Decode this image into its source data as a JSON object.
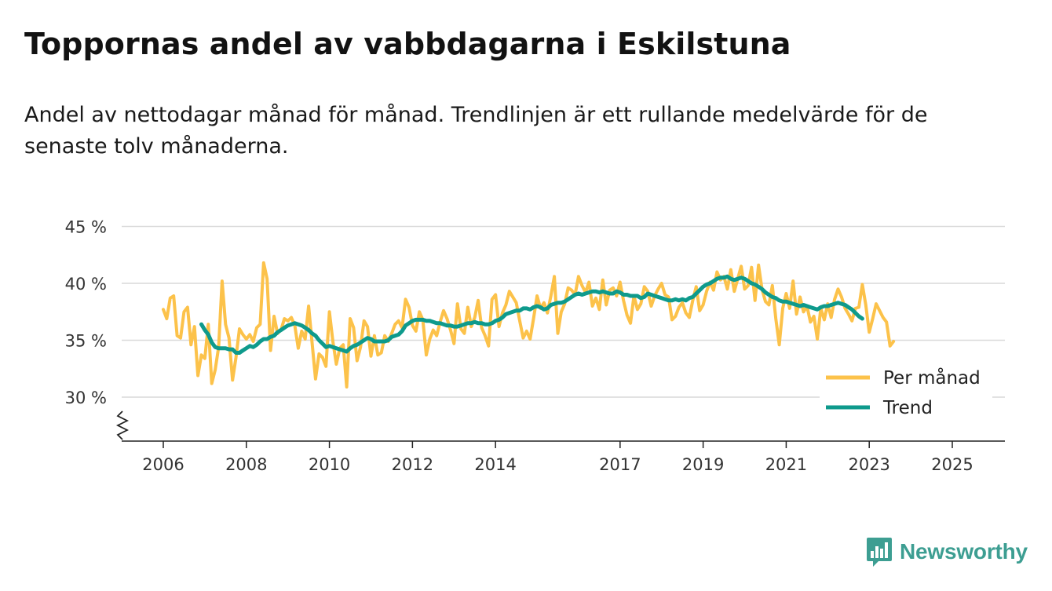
{
  "title": "Toppornas andel av vabbdagarna i Eskilstuna",
  "subtitle": "Andel av nettodagar månad för månad. Trendlinjen är ett rullande medelvärde för de senaste tolv månaderna.",
  "brand": {
    "name": "Newsworthy",
    "color": "#3d9e92",
    "icon": "bar-chart-speech-bubble-icon"
  },
  "colors": {
    "monthly": "#fcc24a",
    "trend": "#0e9a8c",
    "grid": "#d9d9d9",
    "axis": "#222222"
  },
  "chart_data": {
    "type": "line",
    "title": "Toppornas andel av vabbdagarna i Eskilstuna",
    "xlabel": "",
    "ylabel": "",
    "ylim": [
      26,
      45
    ],
    "y_axis_break": true,
    "xlim": [
      2006,
      2025.7
    ],
    "yticks": [
      30,
      35,
      40,
      45
    ],
    "ytick_labels": [
      "30 %",
      "35 %",
      "40 %",
      "45 %"
    ],
    "xticks": [
      2006,
      2008,
      2010,
      2012,
      2014,
      2017,
      2019,
      2021,
      2023,
      2025
    ],
    "xtick_labels": [
      "2006",
      "2008",
      "2010",
      "2012",
      "2014",
      "2017",
      "2019",
      "2021",
      "2023",
      "2025"
    ],
    "grid": true,
    "legend_position": "bottom-right",
    "series": [
      {
        "name": "Per månad",
        "start_year": 2006.0,
        "step_years": 0.0833333,
        "values": [
          37.7,
          36.9,
          38.7,
          38.9,
          35.4,
          35.2,
          37.5,
          37.9,
          34.6,
          36.2,
          31.9,
          33.7,
          33.4,
          36.4,
          31.2,
          32.4,
          34.4,
          40.2,
          36.4,
          35.2,
          31.5,
          33.5,
          36.0,
          35.5,
          35.1,
          35.5,
          34.9,
          36.1,
          36.4,
          41.8,
          40.4,
          34.1,
          37.1,
          35.6,
          35.9,
          36.9,
          36.7,
          37.0,
          36.3,
          34.3,
          35.8,
          35.1,
          38.0,
          34.8,
          31.6,
          33.8,
          33.5,
          32.7,
          37.5,
          34.9,
          32.9,
          34.3,
          34.6,
          30.9,
          36.9,
          36.1,
          33.2,
          34.4,
          36.7,
          36.2,
          33.6,
          35.4,
          33.7,
          33.9,
          35.4,
          34.9,
          35.6,
          36.4,
          36.7,
          36.1,
          38.6,
          37.9,
          36.3,
          35.8,
          37.5,
          36.8,
          33.7,
          35.1,
          35.9,
          35.4,
          36.6,
          37.6,
          36.9,
          35.9,
          34.7,
          38.2,
          36.0,
          35.6,
          37.9,
          36.2,
          37.0,
          38.5,
          36.1,
          35.4,
          34.5,
          38.6,
          39.0,
          36.2,
          37.4,
          38.1,
          39.3,
          38.8,
          38.3,
          36.7,
          35.2,
          35.8,
          35.1,
          36.9,
          38.9,
          37.8,
          38.3,
          37.4,
          38.9,
          40.6,
          35.6,
          37.5,
          38.2,
          39.6,
          39.4,
          39.0,
          40.6,
          39.8,
          39.2,
          40.1,
          38.0,
          38.7,
          37.7,
          40.3,
          38.1,
          39.4,
          39.6,
          38.9,
          40.1,
          38.5,
          37.2,
          36.5,
          38.9,
          37.7,
          38.2,
          39.7,
          39.3,
          38.0,
          38.9,
          39.5,
          40.0,
          39.0,
          38.8,
          36.8,
          37.1,
          37.9,
          38.3,
          37.4,
          37.0,
          38.5,
          39.7,
          37.6,
          38.1,
          39.3,
          40.1,
          39.4,
          41.0,
          40.3,
          40.6,
          39.5,
          41.2,
          39.3,
          40.4,
          41.5,
          39.5,
          39.8,
          41.4,
          38.5,
          41.6,
          39.5,
          38.4,
          38.1,
          39.8,
          36.9,
          34.6,
          37.8,
          39.1,
          37.8,
          40.2,
          37.3,
          38.8,
          37.5,
          38.0,
          36.6,
          37.1,
          35.1,
          37.8,
          36.8,
          38.2,
          37.0,
          38.6,
          39.5,
          38.8,
          37.8,
          37.3,
          36.7,
          37.8,
          37.9,
          39.9,
          38.1,
          35.7,
          36.9,
          38.2,
          37.6,
          37.0,
          36.6,
          34.5,
          34.9
        ]
      },
      {
        "name": "Trend",
        "start_year": 2006.9167,
        "step_years": 0.0833333,
        "values": [
          36.4,
          35.9,
          35.5,
          34.8,
          34.4,
          34.3,
          34.3,
          34.3,
          34.2,
          34.2,
          33.9,
          33.9,
          34.1,
          34.3,
          34.5,
          34.4,
          34.6,
          34.9,
          35.1,
          35.1,
          35.3,
          35.4,
          35.7,
          35.9,
          36.1,
          36.3,
          36.4,
          36.5,
          36.4,
          36.3,
          36.1,
          35.9,
          35.6,
          35.4,
          35.0,
          34.7,
          34.4,
          34.5,
          34.4,
          34.3,
          34.2,
          34.1,
          34.0,
          34.3,
          34.5,
          34.6,
          34.8,
          35.0,
          35.2,
          35.1,
          34.9,
          34.9,
          34.9,
          34.9,
          35.0,
          35.3,
          35.4,
          35.5,
          35.8,
          36.3,
          36.5,
          36.7,
          36.8,
          36.8,
          36.8,
          36.7,
          36.7,
          36.6,
          36.5,
          36.5,
          36.4,
          36.3,
          36.3,
          36.2,
          36.2,
          36.3,
          36.4,
          36.5,
          36.5,
          36.6,
          36.5,
          36.5,
          36.4,
          36.4,
          36.5,
          36.7,
          36.8,
          37.0,
          37.3,
          37.4,
          37.5,
          37.6,
          37.6,
          37.8,
          37.8,
          37.7,
          37.9,
          38.0,
          37.9,
          37.7,
          37.8,
          38.1,
          38.2,
          38.3,
          38.3,
          38.4,
          38.6,
          38.8,
          39.0,
          39.1,
          39.0,
          39.1,
          39.2,
          39.3,
          39.3,
          39.2,
          39.3,
          39.2,
          39.1,
          39.1,
          39.3,
          39.2,
          39.0,
          39.0,
          38.9,
          38.9,
          38.9,
          38.7,
          38.8,
          39.1,
          39.0,
          38.9,
          38.8,
          38.7,
          38.6,
          38.5,
          38.5,
          38.6,
          38.5,
          38.6,
          38.5,
          38.7,
          38.8,
          39.1,
          39.4,
          39.7,
          39.9,
          40.0,
          40.2,
          40.4,
          40.5,
          40.5,
          40.6,
          40.4,
          40.3,
          40.4,
          40.5,
          40.4,
          40.2,
          40.0,
          39.9,
          39.7,
          39.5,
          39.2,
          39.0,
          38.8,
          38.7,
          38.5,
          38.4,
          38.4,
          38.3,
          38.2,
          38.1,
          38.0,
          38.1,
          38.0,
          37.9,
          37.8,
          37.7,
          37.9,
          38.0,
          38.0,
          38.1,
          38.2,
          38.3,
          38.2,
          38.1,
          37.9,
          37.7,
          37.4,
          37.1,
          36.9
        ]
      }
    ]
  }
}
